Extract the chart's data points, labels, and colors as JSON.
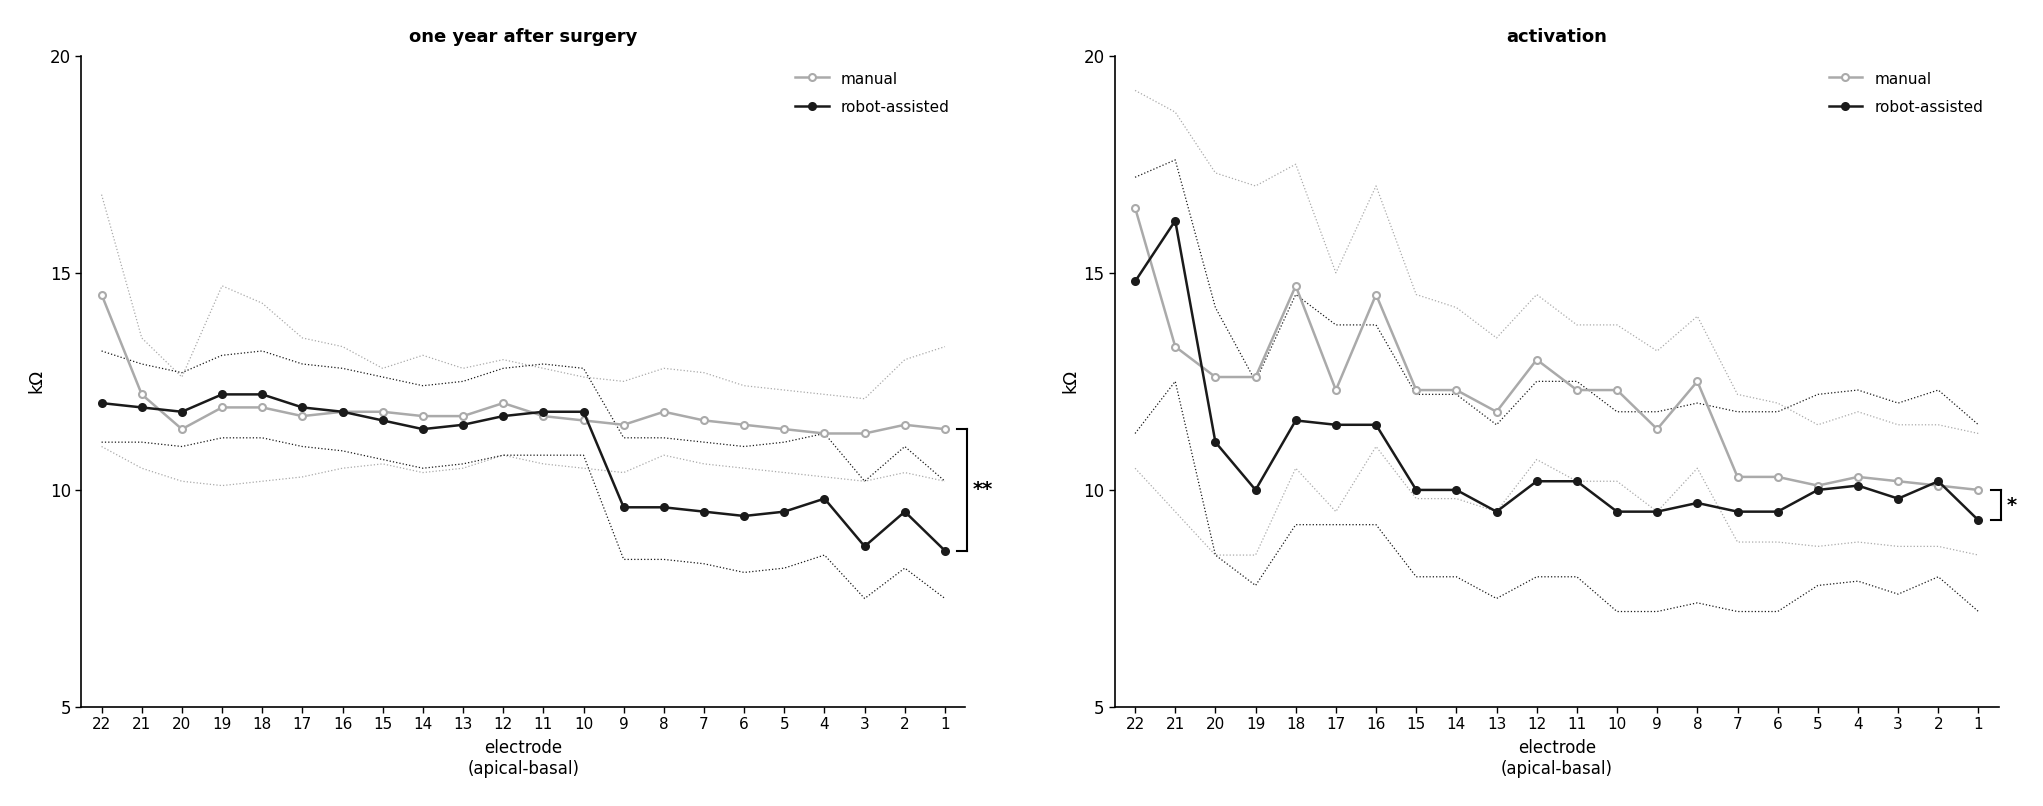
{
  "electrodes": [
    22,
    21,
    20,
    19,
    18,
    17,
    16,
    15,
    14,
    13,
    12,
    11,
    10,
    9,
    8,
    7,
    6,
    5,
    4,
    3,
    2,
    1
  ],
  "left_title": "one year after surgery",
  "left_manual_mean": [
    14.5,
    12.2,
    11.4,
    11.9,
    11.9,
    11.7,
    11.8,
    11.8,
    11.7,
    11.7,
    12.0,
    11.7,
    11.6,
    11.5,
    11.8,
    11.6,
    11.5,
    11.4,
    11.3,
    11.3,
    11.5,
    11.4
  ],
  "left_robot_mean": [
    12.0,
    11.9,
    11.8,
    12.2,
    12.2,
    11.9,
    11.8,
    11.6,
    11.4,
    11.5,
    11.7,
    11.8,
    11.8,
    9.6,
    9.6,
    9.5,
    9.4,
    9.5,
    9.8,
    8.7,
    9.5,
    8.6
  ],
  "left_manual_upper": [
    16.8,
    13.5,
    12.6,
    14.7,
    14.3,
    13.5,
    13.3,
    12.8,
    13.1,
    12.8,
    13.0,
    12.8,
    12.6,
    12.5,
    12.8,
    12.7,
    12.4,
    12.3,
    12.2,
    12.1,
    13.0,
    13.3
  ],
  "left_manual_lower": [
    11.0,
    10.5,
    10.2,
    10.1,
    10.2,
    10.3,
    10.5,
    10.6,
    10.4,
    10.5,
    10.8,
    10.6,
    10.5,
    10.4,
    10.8,
    10.6,
    10.5,
    10.4,
    10.3,
    10.2,
    10.4,
    10.2
  ],
  "left_robot_upper": [
    13.2,
    12.9,
    12.7,
    13.1,
    13.2,
    12.9,
    12.8,
    12.6,
    12.4,
    12.5,
    12.8,
    12.9,
    12.8,
    11.2,
    11.2,
    11.1,
    11.0,
    11.1,
    11.3,
    10.2,
    11.0,
    10.2
  ],
  "left_robot_lower": [
    11.1,
    11.1,
    11.0,
    11.2,
    11.2,
    11.0,
    10.9,
    10.7,
    10.5,
    10.6,
    10.8,
    10.8,
    10.8,
    8.4,
    8.4,
    8.3,
    8.1,
    8.2,
    8.5,
    7.5,
    8.2,
    7.5
  ],
  "right_title": "activation",
  "right_manual_mean": [
    16.5,
    13.3,
    12.6,
    12.6,
    14.7,
    12.3,
    14.5,
    12.3,
    12.3,
    11.8,
    13.0,
    12.3,
    12.3,
    11.4,
    12.5,
    10.3,
    10.3,
    10.1,
    10.3,
    10.2,
    10.1,
    10.0
  ],
  "right_robot_mean": [
    14.8,
    16.2,
    11.1,
    10.0,
    11.6,
    11.5,
    11.5,
    10.0,
    10.0,
    9.5,
    10.2,
    10.2,
    9.5,
    9.5,
    9.7,
    9.5,
    9.5,
    10.0,
    10.1,
    9.8,
    10.2,
    9.3
  ],
  "right_manual_upper": [
    19.2,
    18.7,
    17.3,
    17.0,
    17.5,
    15.0,
    17.0,
    14.5,
    14.2,
    13.5,
    14.5,
    13.8,
    13.8,
    13.2,
    14.0,
    12.2,
    12.0,
    11.5,
    11.8,
    11.5,
    11.5,
    11.3
  ],
  "right_manual_lower": [
    10.5,
    9.5,
    8.5,
    8.5,
    10.5,
    9.5,
    11.0,
    9.8,
    9.8,
    9.5,
    10.7,
    10.2,
    10.2,
    9.5,
    10.5,
    8.8,
    8.8,
    8.7,
    8.8,
    8.7,
    8.7,
    8.5
  ],
  "right_robot_upper": [
    17.2,
    17.6,
    14.2,
    12.5,
    14.5,
    13.8,
    13.8,
    12.2,
    12.2,
    11.5,
    12.5,
    12.5,
    11.8,
    11.8,
    12.0,
    11.8,
    11.8,
    12.2,
    12.3,
    12.0,
    12.3,
    11.5
  ],
  "right_robot_lower": [
    11.3,
    12.5,
    8.5,
    7.8,
    9.2,
    9.2,
    9.2,
    8.0,
    8.0,
    7.5,
    8.0,
    8.0,
    7.2,
    7.2,
    7.4,
    7.2,
    7.2,
    7.8,
    7.9,
    7.6,
    8.0,
    7.2
  ],
  "manual_color": "#aaaaaa",
  "robot_color": "#1a1a1a",
  "ylim": [
    5,
    20
  ],
  "yticks": [
    5,
    10,
    15,
    20
  ],
  "ylabel": "kΩ",
  "xlabel": "electrode\n(apical-basal)",
  "marker_size": 5,
  "linewidth": 1.8,
  "dot_linewidth": 0.9
}
